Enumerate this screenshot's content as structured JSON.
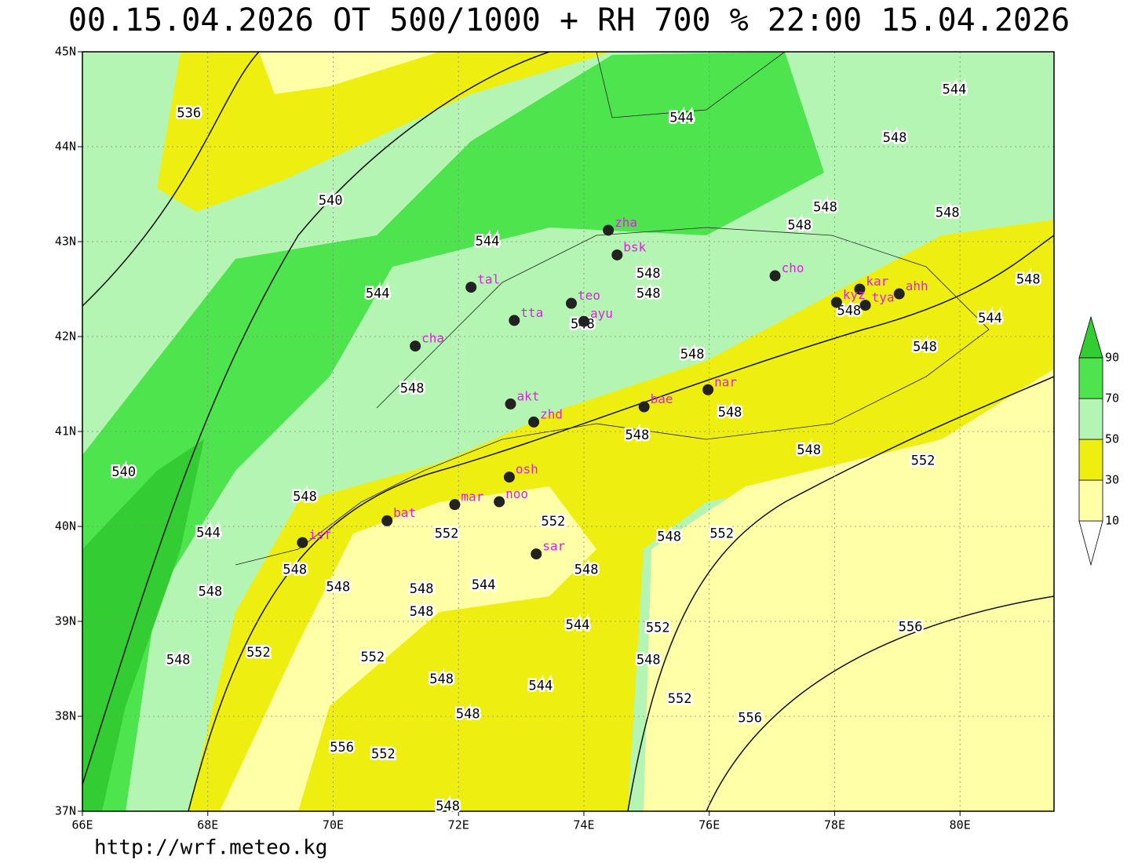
{
  "title": "00.15.04.2026 OT 500/1000 + RH 700 % 22:00 15.04.2026",
  "url": "http://wrf.meteo.kg",
  "map": {
    "lonlim": [
      66,
      81.5
    ],
    "latlim": [
      37,
      45
    ],
    "grid": true,
    "lonticks": [
      {
        "value": 66,
        "label": "66E"
      },
      {
        "value": 68,
        "label": "68E"
      },
      {
        "value": 70,
        "label": "70E"
      },
      {
        "value": 72,
        "label": "72E"
      },
      {
        "value": 74,
        "label": "74E"
      },
      {
        "value": 76,
        "label": "76E"
      },
      {
        "value": 78,
        "label": "78E"
      },
      {
        "value": 80,
        "label": "80E"
      }
    ],
    "latticks": [
      {
        "value": 37,
        "label": "37N"
      },
      {
        "value": 38,
        "label": "38N"
      },
      {
        "value": 39,
        "label": "39N"
      },
      {
        "value": 40,
        "label": "40N"
      },
      {
        "value": 41,
        "label": "41N"
      },
      {
        "value": 42,
        "label": "42N"
      },
      {
        "value": 43,
        "label": "43N"
      },
      {
        "value": 44,
        "label": "44N"
      },
      {
        "value": 45,
        "label": "45N"
      }
    ]
  },
  "stations": [
    {
      "name": "zha",
      "lon": 74.39,
      "lat": 43.12
    },
    {
      "name": "bsk",
      "lon": 74.53,
      "lat": 42.86
    },
    {
      "name": "tal",
      "lon": 72.2,
      "lat": 42.52
    },
    {
      "name": "teo",
      "lon": 73.8,
      "lat": 42.35
    },
    {
      "name": "tta",
      "lon": 72.89,
      "lat": 42.17
    },
    {
      "name": "ayu",
      "lon": 74.0,
      "lat": 42.16
    },
    {
      "name": "cho",
      "lon": 77.05,
      "lat": 42.64
    },
    {
      "name": "kar",
      "lon": 78.4,
      "lat": 42.5
    },
    {
      "name": "kyz",
      "lon": 78.03,
      "lat": 42.36
    },
    {
      "name": "tya",
      "lon": 78.49,
      "lat": 42.33
    },
    {
      "name": "ahh",
      "lon": 79.03,
      "lat": 42.45
    },
    {
      "name": "cha",
      "lon": 71.31,
      "lat": 41.9
    },
    {
      "name": "nar",
      "lon": 75.98,
      "lat": 41.44
    },
    {
      "name": "akt",
      "lon": 72.83,
      "lat": 41.29
    },
    {
      "name": "bae",
      "lon": 74.96,
      "lat": 41.26
    },
    {
      "name": "zhd",
      "lon": 73.2,
      "lat": 41.1
    },
    {
      "name": "osh",
      "lon": 72.81,
      "lat": 40.52
    },
    {
      "name": "mar",
      "lon": 71.94,
      "lat": 40.23
    },
    {
      "name": "noo",
      "lon": 72.65,
      "lat": 40.26
    },
    {
      "name": "bat",
      "lon": 70.86,
      "lat": 40.06
    },
    {
      "name": "isf",
      "lon": 69.51,
      "lat": 39.83
    },
    {
      "name": "sar",
      "lon": 73.24,
      "lat": 39.71
    }
  ],
  "contour_labels": [
    {
      "value": 536,
      "lon": 67.7,
      "lat": 44.35
    },
    {
      "value": 544,
      "lon": 79.91,
      "lat": 44.6
    },
    {
      "value": 544,
      "lon": 75.56,
      "lat": 44.3
    },
    {
      "value": 548,
      "lon": 78.96,
      "lat": 44.09
    },
    {
      "value": 540,
      "lon": 69.96,
      "lat": 43.43
    },
    {
      "value": 548,
      "lon": 77.85,
      "lat": 43.36
    },
    {
      "value": 548,
      "lon": 79.8,
      "lat": 43.3
    },
    {
      "value": 548,
      "lon": 77.44,
      "lat": 43.17
    },
    {
      "value": 544,
      "lon": 72.46,
      "lat": 43.0
    },
    {
      "value": 548,
      "lon": 75.03,
      "lat": 42.66
    },
    {
      "value": 548,
      "lon": 75.03,
      "lat": 42.45
    },
    {
      "value": 548,
      "lon": 81.09,
      "lat": 42.6
    },
    {
      "value": 544,
      "lon": 70.71,
      "lat": 42.45
    },
    {
      "value": 548,
      "lon": 78.23,
      "lat": 42.27
    },
    {
      "value": 544,
      "lon": 80.48,
      "lat": 42.19
    },
    {
      "value": 548,
      "lon": 73.98,
      "lat": 42.13
    },
    {
      "value": 548,
      "lon": 75.73,
      "lat": 41.81
    },
    {
      "value": 548,
      "lon": 79.44,
      "lat": 41.89
    },
    {
      "value": 548,
      "lon": 71.26,
      "lat": 41.45
    },
    {
      "value": 548,
      "lon": 76.33,
      "lat": 41.2
    },
    {
      "value": 548,
      "lon": 74.85,
      "lat": 40.96
    },
    {
      "value": 548,
      "lon": 77.59,
      "lat": 40.8
    },
    {
      "value": 552,
      "lon": 79.41,
      "lat": 40.69
    },
    {
      "value": 540,
      "lon": 66.66,
      "lat": 40.57
    },
    {
      "value": 548,
      "lon": 69.55,
      "lat": 40.31
    },
    {
      "value": 552,
      "lon": 73.51,
      "lat": 40.05
    },
    {
      "value": 544,
      "lon": 68.01,
      "lat": 39.93
    },
    {
      "value": 552,
      "lon": 71.81,
      "lat": 39.92
    },
    {
      "value": 548,
      "lon": 75.36,
      "lat": 39.89
    },
    {
      "value": 552,
      "lon": 76.2,
      "lat": 39.92
    },
    {
      "value": 548,
      "lon": 69.39,
      "lat": 39.54
    },
    {
      "value": 548,
      "lon": 74.04,
      "lat": 39.54
    },
    {
      "value": 548,
      "lon": 70.08,
      "lat": 39.36
    },
    {
      "value": 548,
      "lon": 71.41,
      "lat": 39.34
    },
    {
      "value": 544,
      "lon": 72.4,
      "lat": 39.38
    },
    {
      "value": 548,
      "lon": 68.04,
      "lat": 39.31
    },
    {
      "value": 548,
      "lon": 71.41,
      "lat": 39.1
    },
    {
      "value": 544,
      "lon": 73.9,
      "lat": 38.96
    },
    {
      "value": 552,
      "lon": 75.18,
      "lat": 38.93
    },
    {
      "value": 556,
      "lon": 79.21,
      "lat": 38.94
    },
    {
      "value": 552,
      "lon": 68.81,
      "lat": 38.67
    },
    {
      "value": 548,
      "lon": 67.53,
      "lat": 38.59
    },
    {
      "value": 552,
      "lon": 70.63,
      "lat": 38.62
    },
    {
      "value": 548,
      "lon": 75.03,
      "lat": 38.59
    },
    {
      "value": 548,
      "lon": 71.73,
      "lat": 38.39
    },
    {
      "value": 544,
      "lon": 73.31,
      "lat": 38.32
    },
    {
      "value": 552,
      "lon": 75.53,
      "lat": 38.18
    },
    {
      "value": 548,
      "lon": 72.15,
      "lat": 38.02
    },
    {
      "value": 556,
      "lon": 76.65,
      "lat": 37.98
    },
    {
      "value": 556,
      "lon": 70.14,
      "lat": 37.67
    },
    {
      "value": 552,
      "lon": 70.8,
      "lat": 37.6
    },
    {
      "value": 548,
      "lon": 71.83,
      "lat": 37.05
    }
  ],
  "colorbar": {
    "levels": [
      10,
      30,
      50,
      70,
      90
    ],
    "colors": [
      "#ffffff",
      "#ffffa8",
      "#eeee11",
      "#b4f5b4",
      "#4ee44e",
      "#33cc33"
    ]
  }
}
